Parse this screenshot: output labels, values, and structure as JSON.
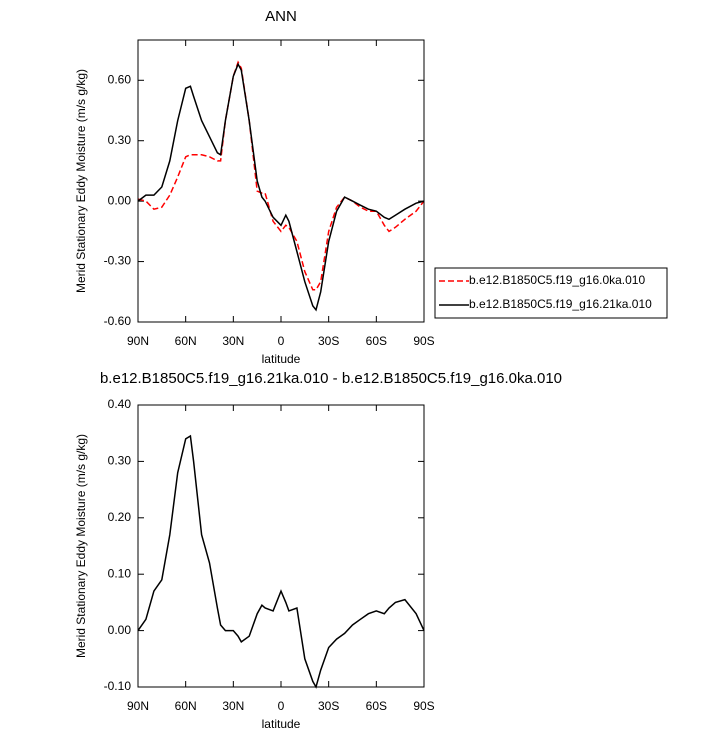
{
  "chart_data": [
    {
      "type": "line",
      "title": "ANN",
      "y_label": "Merid Stationary Eddy Moisture (m/s g/kg)",
      "x_label": "latitude",
      "x": [
        90,
        85,
        80,
        75,
        70,
        65,
        60,
        57,
        55,
        50,
        45,
        40,
        38,
        35,
        30,
        27,
        25,
        20,
        15,
        12,
        10,
        5,
        0,
        -3,
        -5,
        -10,
        -15,
        -20,
        -22,
        -25,
        -30,
        -35,
        -40,
        -45,
        -50,
        -55,
        -60,
        -65,
        -68,
        -72,
        -78,
        -85,
        -90
      ],
      "xlim": [
        90,
        -90
      ],
      "xticks": [
        {
          "value": 90,
          "label": "90N"
        },
        {
          "value": 60,
          "label": "60N"
        },
        {
          "value": 30,
          "label": "30N"
        },
        0,
        {
          "value": -30,
          "label": "30S"
        },
        {
          "value": -60,
          "label": "60S"
        },
        {
          "value": -90,
          "label": "90S"
        }
      ],
      "ylim": [
        -0.6,
        0.8
      ],
      "yticks": [
        {
          "value": 0.6,
          "label": "0.60"
        },
        {
          "value": 0.3,
          "label": "0.30"
        },
        {
          "value": 0,
          "label": "0.00"
        },
        {
          "value": -0.3,
          "label": "-0.30"
        },
        {
          "value": -0.6,
          "label": "-0.60"
        }
      ],
      "legend": "right",
      "series": [
        {
          "name": "b.e12.B1850C5.f19_g16.0ka.010",
          "color": "#ff0000",
          "line_style": "dashed",
          "values": [
            0.01,
            0.0,
            -0.04,
            -0.03,
            0.03,
            0.12,
            0.22,
            0.23,
            0.23,
            0.23,
            0.22,
            0.2,
            0.2,
            0.4,
            0.62,
            0.69,
            0.66,
            0.4,
            0.05,
            0.04,
            0.04,
            -0.1,
            -0.15,
            -0.12,
            -0.13,
            -0.2,
            -0.35,
            -0.44,
            -0.44,
            -0.4,
            -0.15,
            -0.03,
            0.02,
            0.0,
            -0.03,
            -0.05,
            -0.05,
            -0.12,
            -0.15,
            -0.13,
            -0.09,
            -0.05,
            0.0
          ]
        },
        {
          "name": "b.e12.B1850C5.f19_g16.21ka.010",
          "color": "#000000",
          "line_style": "solid",
          "values": [
            0.0,
            0.03,
            0.03,
            0.07,
            0.2,
            0.4,
            0.56,
            0.57,
            0.52,
            0.4,
            0.32,
            0.24,
            0.23,
            0.4,
            0.62,
            0.68,
            0.65,
            0.4,
            0.1,
            0.02,
            0.0,
            -0.08,
            -0.12,
            -0.07,
            -0.1,
            -0.25,
            -0.4,
            -0.52,
            -0.54,
            -0.45,
            -0.2,
            -0.05,
            0.02,
            0.0,
            -0.02,
            -0.04,
            -0.05,
            -0.08,
            -0.09,
            -0.07,
            -0.04,
            -0.01,
            0.0
          ]
        }
      ]
    },
    {
      "type": "line",
      "title": "b.e12.B1850C5.f19_g16.21ka.010 - b.e12.B1850C5.f19_g16.0ka.010",
      "y_label": "Merid Stationary Eddy Moisture (m/s g/kg)",
      "x_label": "latitude",
      "x": [
        90,
        85,
        80,
        75,
        70,
        65,
        60,
        57,
        55,
        50,
        45,
        40,
        38,
        35,
        30,
        27,
        25,
        20,
        15,
        12,
        10,
        5,
        0,
        -3,
        -5,
        -10,
        -15,
        -20,
        -22,
        -25,
        -30,
        -35,
        -40,
        -45,
        -50,
        -55,
        -60,
        -65,
        -68,
        -72,
        -78,
        -85,
        -90
      ],
      "xlim": [
        90,
        -90
      ],
      "xticks": [
        {
          "value": 90,
          "label": "90N"
        },
        {
          "value": 60,
          "label": "60N"
        },
        {
          "value": 30,
          "label": "30N"
        },
        0,
        {
          "value": -30,
          "label": "30S"
        },
        {
          "value": -60,
          "label": "60S"
        },
        {
          "value": -90,
          "label": "90S"
        }
      ],
      "ylim": [
        -0.1,
        0.4
      ],
      "yticks": [
        {
          "value": 0.4,
          "label": "0.40"
        },
        {
          "value": 0.3,
          "label": "0.30"
        },
        {
          "value": 0.2,
          "label": "0.20"
        },
        {
          "value": 0.1,
          "label": "0.10"
        },
        {
          "value": 0,
          "label": "0.00"
        },
        {
          "value": -0.1,
          "label": "-0.10"
        }
      ],
      "series": [
        {
          "color": "#000000",
          "line_style": "solid",
          "values": [
            0.0,
            0.02,
            0.07,
            0.09,
            0.17,
            0.28,
            0.34,
            0.345,
            0.3,
            0.17,
            0.12,
            0.04,
            0.01,
            0.0,
            0.0,
            -0.01,
            -0.02,
            -0.01,
            0.03,
            0.045,
            0.04,
            0.035,
            0.07,
            0.05,
            0.035,
            0.04,
            -0.05,
            -0.09,
            -0.1,
            -0.07,
            -0.03,
            -0.015,
            -0.005,
            0.01,
            0.02,
            0.03,
            0.035,
            0.03,
            0.04,
            0.05,
            0.055,
            0.03,
            0.0
          ]
        }
      ]
    }
  ]
}
